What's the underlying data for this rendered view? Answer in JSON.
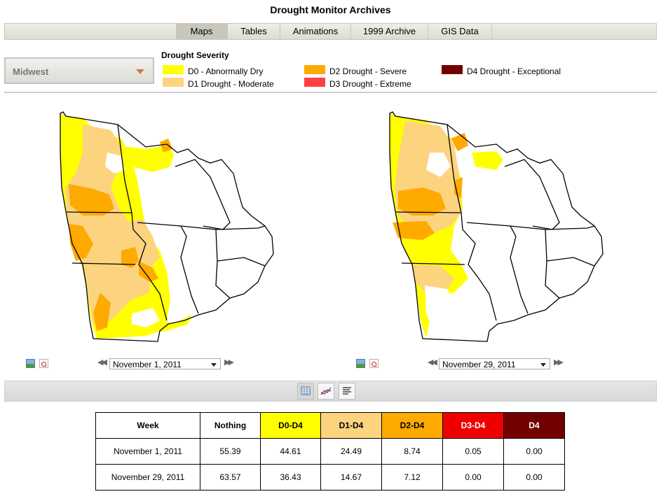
{
  "header": {
    "title": "Drought Monitor Archives"
  },
  "nav": {
    "tabs": [
      {
        "label": "Maps",
        "active": true
      },
      {
        "label": "Tables",
        "active": false
      },
      {
        "label": "Animations",
        "active": false
      },
      {
        "label": "1999 Archive",
        "active": false
      },
      {
        "label": "GIS Data",
        "active": false
      }
    ]
  },
  "region": {
    "selected": "Midwest"
  },
  "legend": {
    "title": "Drought Severity",
    "items": [
      {
        "label": "D0 - Abnormally Dry",
        "color": "#ffff00"
      },
      {
        "label": "D1 Drought - Moderate",
        "color": "#fcd37f"
      },
      {
        "label": "D2 Drought - Severe",
        "color": "#ffaa00"
      },
      {
        "label": "D3 Drought - Extreme",
        "color": "#ff4040"
      },
      {
        "label": "D4 Drought - Exceptional",
        "color": "#730000"
      }
    ]
  },
  "maps": [
    {
      "date": "November 1, 2011",
      "icons": [
        "image-icon",
        "pdf-icon"
      ]
    },
    {
      "date": "November 29, 2011",
      "icons": [
        "image-icon",
        "pdf-icon"
      ]
    }
  ],
  "views": [
    "table-view-icon",
    "chart-view-icon",
    "text-view-icon"
  ],
  "table": {
    "headers": [
      "Week",
      "Nothing",
      "D0-D4",
      "D1-D4",
      "D2-D4",
      "D3-D4",
      "D4"
    ],
    "header_colors": [
      "#ffffff",
      "#ffffff",
      "#ffff00",
      "#fcd37f",
      "#ffaa00",
      "#ee0000",
      "#730000"
    ],
    "rows": [
      [
        "November 1, 2011",
        "55.39",
        "44.61",
        "24.49",
        "8.74",
        "0.05",
        "0.00"
      ],
      [
        "November 29, 2011",
        "63.57",
        "36.43",
        "14.67",
        "7.12",
        "0.00",
        "0.00"
      ]
    ]
  }
}
